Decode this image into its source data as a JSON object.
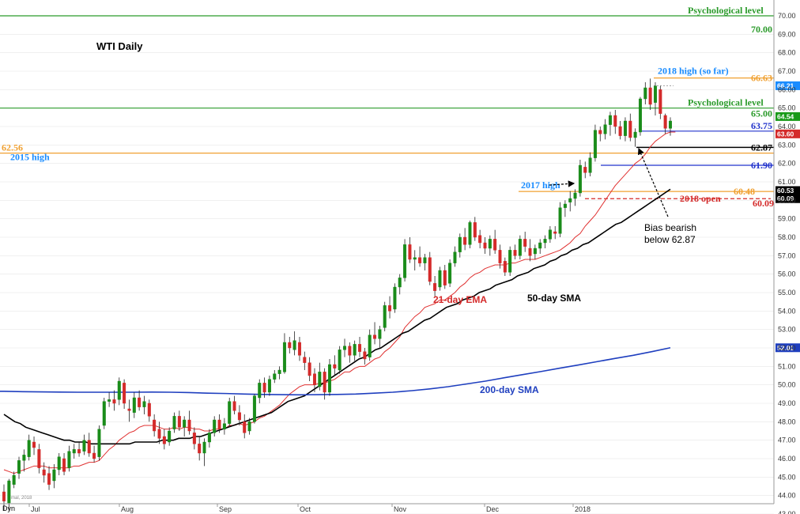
{
  "chart_data": {
    "type": "candlestick",
    "title": "WTI Daily",
    "ylim": [
      43.0,
      70.3
    ],
    "y_ticks": [
      "70.00",
      "69.00",
      "68.00",
      "67.00",
      "66.00",
      "65.00",
      "64.00",
      "63.00",
      "62.00",
      "61.00",
      "60.00",
      "59.00",
      "58.00",
      "57.00",
      "56.00",
      "55.00",
      "54.00",
      "53.00",
      "52.00",
      "51.00",
      "50.00",
      "49.00",
      "48.00",
      "47.00",
      "46.00",
      "45.00",
      "44.00",
      "43.00"
    ],
    "x_labels": [
      "Jul",
      "Aug",
      "Sep",
      "Oct",
      "Nov",
      "Dec",
      "2018"
    ],
    "corner_label": "Dyn",
    "watermark": "mal, 2018",
    "colors": {
      "up": "#1a8c1a",
      "down": "#d42a2a",
      "ema": "#e03030",
      "sma50": "#000000",
      "sma200": "#1f3fbf",
      "green_level": "#2a9a2a",
      "orange_level": "#f0a030",
      "blue_level": "#2233cc",
      "grey_grid": "#e6e6e6"
    },
    "candles": [
      [
        44.2,
        44.6,
        43.2,
        43.7
      ],
      [
        43.6,
        44.9,
        43.2,
        44.8
      ],
      [
        44.6,
        45.3,
        44.4,
        45.1
      ],
      [
        45.2,
        46.1,
        44.9,
        45.9
      ],
      [
        45.9,
        46.5,
        45.3,
        46.2
      ],
      [
        46.1,
        47.3,
        45.9,
        47.0
      ],
      [
        46.9,
        47.2,
        46.2,
        46.6
      ],
      [
        46.5,
        46.8,
        45.2,
        45.5
      ],
      [
        45.4,
        45.8,
        44.7,
        45.1
      ],
      [
        45.2,
        45.6,
        44.3,
        44.6
      ],
      [
        44.8,
        45.7,
        44.4,
        45.4
      ],
      [
        45.4,
        46.3,
        45.1,
        46.1
      ],
      [
        46.0,
        46.3,
        45.1,
        45.3
      ],
      [
        45.5,
        46.7,
        45.3,
        46.4
      ],
      [
        46.3,
        46.8,
        46.0,
        46.5
      ],
      [
        46.5,
        46.9,
        46.1,
        46.3
      ],
      [
        46.4,
        47.3,
        46.2,
        47.0
      ],
      [
        47.0,
        47.4,
        46.1,
        46.3
      ],
      [
        46.3,
        46.7,
        45.8,
        46.0
      ],
      [
        46.1,
        47.8,
        45.9,
        47.6
      ],
      [
        47.8,
        49.3,
        47.6,
        49.1
      ],
      [
        49.1,
        49.6,
        48.8,
        49.2
      ],
      [
        49.2,
        49.7,
        48.6,
        49.0
      ],
      [
        49.2,
        50.4,
        48.9,
        50.2
      ],
      [
        50.1,
        50.3,
        48.7,
        49.0
      ],
      [
        48.7,
        49.2,
        48.0,
        48.6
      ],
      [
        48.5,
        49.6,
        48.2,
        49.3
      ],
      [
        49.3,
        49.7,
        48.6,
        48.8
      ],
      [
        48.8,
        49.4,
        48.4,
        49.1
      ],
      [
        49.0,
        49.2,
        48.0,
        48.3
      ],
      [
        48.1,
        48.4,
        47.2,
        47.5
      ],
      [
        47.6,
        48.0,
        46.8,
        47.1
      ],
      [
        47.2,
        47.6,
        46.5,
        46.8
      ],
      [
        46.9,
        47.7,
        46.7,
        47.5
      ],
      [
        47.6,
        48.5,
        47.4,
        48.3
      ],
      [
        48.3,
        48.6,
        47.5,
        47.7
      ],
      [
        47.7,
        48.3,
        47.2,
        48.1
      ],
      [
        48.1,
        48.6,
        47.3,
        47.5
      ],
      [
        47.4,
        47.7,
        46.5,
        46.8
      ],
      [
        46.8,
        47.2,
        45.9,
        46.3
      ],
      [
        46.3,
        47.1,
        45.6,
        46.9
      ],
      [
        46.9,
        47.6,
        46.6,
        47.4
      ],
      [
        47.4,
        48.3,
        47.2,
        48.1
      ],
      [
        48.1,
        48.4,
        47.4,
        47.6
      ],
      [
        47.6,
        48.2,
        47.3,
        47.9
      ],
      [
        47.9,
        49.3,
        47.7,
        49.1
      ],
      [
        49.1,
        49.4,
        48.4,
        48.6
      ],
      [
        48.5,
        48.9,
        47.8,
        48.1
      ],
      [
        48.0,
        48.4,
        47.1,
        47.4
      ],
      [
        47.5,
        48.2,
        47.3,
        48.0
      ],
      [
        48.0,
        49.5,
        47.9,
        49.4
      ],
      [
        49.3,
        50.3,
        49.0,
        50.1
      ],
      [
        50.1,
        50.4,
        49.3,
        49.6
      ],
      [
        49.6,
        50.5,
        49.4,
        50.3
      ],
      [
        50.3,
        50.8,
        50.1,
        50.6
      ],
      [
        50.6,
        51.0,
        50.3,
        50.8
      ],
      [
        50.7,
        52.8,
        50.6,
        52.3
      ],
      [
        52.3,
        52.6,
        51.7,
        52.0
      ],
      [
        51.9,
        52.9,
        51.6,
        52.4
      ],
      [
        52.3,
        52.6,
        51.3,
        51.6
      ],
      [
        51.5,
        51.8,
        50.8,
        51.2
      ],
      [
        51.2,
        51.5,
        50.2,
        50.5
      ],
      [
        50.6,
        50.9,
        49.6,
        50.0
      ],
      [
        49.9,
        51.2,
        49.7,
        50.7
      ],
      [
        50.7,
        50.9,
        49.2,
        49.6
      ],
      [
        49.6,
        51.4,
        49.4,
        51.1
      ],
      [
        51.1,
        51.6,
        50.5,
        50.9
      ],
      [
        50.8,
        52.1,
        50.6,
        51.9
      ],
      [
        51.9,
        52.5,
        51.5,
        52.1
      ],
      [
        52.1,
        52.3,
        51.2,
        51.6
      ],
      [
        51.6,
        52.4,
        51.3,
        52.2
      ],
      [
        52.2,
        52.6,
        51.5,
        51.8
      ],
      [
        51.8,
        52.0,
        51.1,
        51.4
      ],
      [
        51.5,
        53.0,
        51.3,
        52.7
      ],
      [
        52.7,
        53.4,
        52.2,
        52.5
      ],
      [
        52.5,
        53.2,
        52.0,
        53.0
      ],
      [
        53.1,
        54.5,
        52.9,
        54.3
      ],
      [
        54.3,
        54.8,
        53.6,
        54.0
      ],
      [
        54.1,
        55.5,
        53.9,
        55.3
      ],
      [
        55.3,
        56.0,
        54.9,
        55.8
      ],
      [
        55.8,
        57.9,
        55.6,
        57.6
      ],
      [
        57.6,
        58.0,
        56.6,
        56.8
      ],
      [
        56.8,
        57.3,
        56.2,
        56.9
      ],
      [
        56.9,
        57.5,
        56.4,
        56.6
      ],
      [
        56.6,
        57.1,
        56.2,
        56.9
      ],
      [
        56.9,
        57.2,
        55.4,
        55.6
      ],
      [
        55.5,
        55.9,
        54.8,
        55.1
      ],
      [
        55.3,
        56.4,
        55.1,
        56.2
      ],
      [
        56.2,
        56.5,
        55.2,
        55.4
      ],
      [
        55.5,
        56.8,
        55.3,
        56.6
      ],
      [
        56.6,
        57.5,
        56.4,
        57.2
      ],
      [
        57.2,
        58.2,
        56.9,
        58.0
      ],
      [
        58.0,
        58.5,
        57.3,
        57.6
      ],
      [
        57.6,
        58.9,
        57.4,
        58.8
      ],
      [
        58.8,
        59.1,
        57.8,
        58.0
      ],
      [
        58.1,
        58.4,
        57.4,
        57.7
      ],
      [
        57.7,
        58.0,
        57.1,
        57.4
      ],
      [
        57.4,
        58.1,
        57.0,
        57.9
      ],
      [
        57.9,
        58.4,
        57.1,
        57.3
      ],
      [
        57.3,
        57.6,
        56.3,
        56.6
      ],
      [
        56.7,
        56.9,
        55.9,
        56.1
      ],
      [
        56.1,
        57.5,
        55.9,
        57.3
      ],
      [
        57.3,
        57.6,
        56.8,
        57.0
      ],
      [
        57.0,
        58.1,
        56.8,
        57.9
      ],
      [
        57.9,
        58.3,
        57.2,
        57.5
      ],
      [
        57.4,
        57.9,
        56.7,
        57.0
      ],
      [
        57.1,
        57.6,
        56.8,
        57.4
      ],
      [
        57.4,
        57.9,
        57.1,
        57.7
      ],
      [
        57.7,
        58.1,
        57.4,
        57.9
      ],
      [
        57.9,
        58.6,
        57.7,
        58.4
      ],
      [
        58.3,
        58.6,
        57.9,
        58.2
      ],
      [
        58.2,
        59.9,
        58.0,
        59.6
      ],
      [
        59.6,
        60.0,
        59.1,
        59.8
      ],
      [
        59.9,
        60.5,
        59.4,
        60.1
      ],
      [
        60.1,
        60.6,
        59.7,
        60.4
      ],
      [
        60.4,
        62.2,
        60.2,
        61.9
      ],
      [
        61.8,
        62.1,
        61.2,
        61.5
      ],
      [
        61.5,
        62.6,
        61.3,
        62.3
      ],
      [
        62.3,
        64.1,
        62.1,
        63.8
      ],
      [
        63.8,
        64.0,
        63.2,
        63.6
      ],
      [
        63.6,
        64.4,
        63.3,
        64.1
      ],
      [
        64.1,
        64.8,
        63.5,
        64.6
      ],
      [
        64.6,
        64.9,
        63.6,
        64.0
      ],
      [
        64.0,
        64.3,
        63.3,
        63.5
      ],
      [
        63.5,
        64.5,
        63.2,
        64.3
      ],
      [
        64.3,
        64.7,
        63.2,
        63.4
      ],
      [
        63.4,
        63.9,
        62.9,
        63.7
      ],
      [
        63.7,
        65.6,
        63.5,
        65.5
      ],
      [
        65.5,
        66.4,
        65.2,
        66.1
      ],
      [
        66.1,
        66.6,
        64.9,
        65.2
      ],
      [
        65.3,
        66.4,
        64.6,
        66.2
      ],
      [
        66.0,
        66.2,
        64.4,
        64.7
      ],
      [
        64.6,
        64.7,
        63.6,
        63.9
      ],
      [
        63.9,
        64.5,
        63.5,
        64.3
      ]
    ],
    "ema21": [
      45.4,
      45.3,
      45.2,
      45.3,
      45.4,
      45.5,
      45.6,
      45.6,
      45.6,
      45.5,
      45.5,
      45.5,
      45.5,
      45.5,
      45.6,
      45.6,
      45.7,
      45.8,
      45.8,
      45.9,
      46.2,
      46.5,
      46.7,
      47.0,
      47.2,
      47.4,
      47.5,
      47.7,
      47.8,
      47.8,
      47.8,
      47.7,
      47.6,
      47.6,
      47.7,
      47.6,
      47.7,
      47.7,
      47.6,
      47.6,
      47.5,
      47.5,
      47.6,
      47.6,
      47.6,
      47.8,
      47.8,
      47.9,
      47.8,
      47.9,
      48.0,
      48.2,
      48.3,
      48.5,
      48.7,
      48.9,
      49.2,
      49.5,
      49.7,
      49.9,
      50.0,
      50.0,
      50.0,
      50.1,
      50.1,
      50.2,
      50.3,
      50.5,
      50.7,
      50.7,
      50.9,
      51.0,
      51.0,
      51.2,
      51.4,
      51.5,
      51.8,
      52.0,
      52.3,
      52.6,
      53.1,
      53.4,
      53.7,
      53.9,
      54.2,
      54.3,
      54.4,
      54.6,
      54.6,
      54.8,
      55.0,
      55.3,
      55.5,
      55.8,
      56.0,
      56.1,
      56.3,
      56.4,
      56.5,
      56.5,
      56.5,
      56.6,
      56.6,
      56.7,
      56.8,
      56.8,
      56.8,
      56.9,
      57.0,
      57.1,
      57.2,
      57.3,
      57.5,
      57.7,
      58.0,
      58.2,
      58.6,
      58.9,
      59.2,
      59.6,
      60.0,
      60.4,
      60.8,
      61.1,
      61.4,
      61.7,
      62.0,
      62.2,
      62.5,
      62.9,
      63.2,
      63.4,
      63.6,
      63.7,
      63.7
    ],
    "sma50": [
      48.4,
      48.2,
      48.0,
      47.9,
      47.7,
      47.6,
      47.5,
      47.4,
      47.3,
      47.2,
      47.1,
      47.0,
      47.0,
      46.9,
      46.9,
      46.9,
      46.8,
      46.8,
      46.8,
      46.8,
      46.8,
      46.8,
      46.8,
      46.8,
      46.9,
      46.9,
      46.9,
      46.9,
      46.9,
      47.0,
      47.0,
      47.0,
      47.1,
      47.1,
      47.1,
      47.2,
      47.2,
      47.3,
      47.4,
      47.5,
      47.6,
      47.7,
      47.8,
      47.9,
      48.0,
      48.1,
      48.2,
      48.3,
      48.4,
      48.5,
      48.7,
      48.9,
      49.1,
      49.2,
      49.3,
      49.4,
      49.6,
      49.8,
      50.0,
      50.2,
      50.4,
      50.6,
      50.8,
      51.0,
      51.2,
      51.4,
      51.5,
      51.7,
      51.9,
      52.0,
      52.2,
      52.4,
      52.6,
      52.8,
      52.9,
      53.1,
      53.3,
      53.5,
      53.6,
      53.8,
      54.0,
      54.2,
      54.3,
      54.4,
      54.6,
      54.7,
      54.8,
      55.0,
      55.1,
      55.2,
      55.4,
      55.5,
      55.6,
      55.7,
      55.9,
      56.0,
      56.1,
      56.3,
      56.4,
      56.5,
      56.7,
      56.8,
      57.0,
      57.1,
      57.3,
      57.4,
      57.6,
      57.7,
      57.9,
      58.1,
      58.3,
      58.5,
      58.7,
      58.8,
      59.0,
      59.2,
      59.4,
      59.6,
      59.8,
      60.0,
      60.2,
      60.4,
      60.6
    ],
    "sma200": [
      49.65,
      49.63,
      49.62,
      49.61,
      49.6,
      49.6,
      49.6,
      49.6,
      49.61,
      49.6,
      49.58,
      49.55,
      49.53,
      49.5,
      49.48,
      49.47,
      49.46,
      49.47,
      49.48,
      49.5,
      49.55,
      49.6,
      49.68,
      49.78,
      49.9,
      50.05,
      50.2,
      50.38,
      50.55,
      50.72,
      50.9,
      51.07,
      51.25,
      51.43,
      51.6,
      51.8,
      52.01
    ],
    "levels": [
      {
        "id": "psych-70",
        "value": 70.0,
        "label": "Psychological level",
        "value_label": "70.00",
        "color": "green"
      },
      {
        "id": "high-2018",
        "value": 66.63,
        "label": "2018 high (so far)",
        "value_label": "66.63",
        "color": "orange"
      },
      {
        "id": "psych-65",
        "value": 65.0,
        "label": "Psychological level",
        "value_label": "65.00",
        "color": "green"
      },
      {
        "id": "lvl-6375",
        "value": 63.75,
        "label": "",
        "value_label": "63.75",
        "color": "blue"
      },
      {
        "id": "lvl-6287",
        "value": 62.87,
        "label": "",
        "value_label": "62.87",
        "color": "black"
      },
      {
        "id": "high-2015",
        "value": 62.56,
        "label": "2015 high",
        "value_label": "62.56",
        "color": "orange"
      },
      {
        "id": "lvl-6190",
        "value": 61.9,
        "label": "",
        "value_label": "61.90",
        "color": "blue"
      },
      {
        "id": "high-2017",
        "value": 60.48,
        "label": "2017 high",
        "value_label": "60.48",
        "color": "orange"
      },
      {
        "id": "open-2018",
        "value": 60.09,
        "label": "2018 open",
        "value_label": "60.09",
        "color": "red"
      }
    ],
    "right_badges": [
      {
        "value": 66.21,
        "text": "66.21",
        "bg": "#1a8cff"
      },
      {
        "value": 64.54,
        "text": "64.54",
        "bg": "#1a9a1a"
      },
      {
        "value": 63.6,
        "text": "63.60",
        "bg": "#d42a2a"
      },
      {
        "value": 60.53,
        "text": "60.53",
        "bg": "#000000"
      },
      {
        "value": 60.09,
        "text": "60.09",
        "bg": "#000000"
      },
      {
        "value": 52.01,
        "text": "52.01",
        "bg": "#1f3fbf"
      }
    ],
    "annotations": {
      "ema_label": "21-day EMA",
      "sma50_label": "50-day SMA",
      "sma200_label": "200-day SMA",
      "bias_line1": "Bias bearish",
      "bias_line2": "below 62.87"
    }
  }
}
